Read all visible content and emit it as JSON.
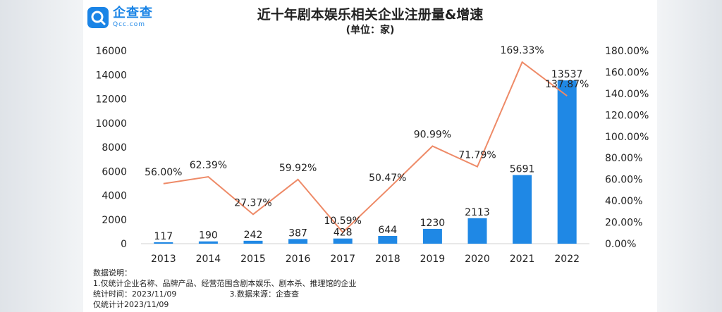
{
  "brand": {
    "name_cn": "企查查",
    "name_en": "Qcc.com",
    "accent": "#1a84e6"
  },
  "chart_data": {
    "type": "bar",
    "title": "近十年剧本娱乐相关企业注册量&增速",
    "subtitle": "(单位：家)",
    "categories": [
      "2013",
      "2014",
      "2015",
      "2016",
      "2017",
      "2018",
      "2019",
      "2020",
      "2021",
      "2022"
    ],
    "series": [
      {
        "type": "bar",
        "axis": "left",
        "color": "#1f88e5",
        "values": [
          117,
          190,
          242,
          387,
          428,
          644,
          1230,
          2113,
          5691,
          13537
        ],
        "labels": [
          "117",
          "190",
          "242",
          "387",
          "428",
          "644",
          "1230",
          "2113",
          "5691",
          "13537"
        ]
      },
      {
        "type": "line",
        "axis": "right",
        "color": "#ee8a67",
        "values": [
          56.0,
          62.39,
          27.37,
          59.92,
          10.59,
          50.47,
          90.99,
          71.79,
          169.33,
          137.87
        ],
        "labels": [
          "56.00%",
          "62.39%",
          "27.37%",
          "59.92%",
          "10.59%",
          "50.47%",
          "90.99%",
          "71.79%",
          "169.33%",
          "137.87%"
        ]
      }
    ],
    "left_axis": {
      "min": 0,
      "max": 16000,
      "ticks": [
        "0",
        "2000",
        "4000",
        "6000",
        "8000",
        "10000",
        "12000",
        "14000",
        "16000"
      ]
    },
    "right_axis": {
      "min": 0,
      "max": 180,
      "ticks": [
        "0.00%",
        "20.00%",
        "40.00%",
        "60.00%",
        "80.00%",
        "100.00%",
        "120.00%",
        "140.00%",
        "160.00%",
        "180.00%"
      ]
    },
    "grid": false
  },
  "notes": {
    "heading": "数据说明：",
    "line1": "1.仅统计企业名称、品牌产品、经营范围含剧本娱乐、剧本杀、推理馆的企业",
    "line2a": "统计时间：2023/11/09",
    "line2b": "3.数据来源：企查查",
    "line3": "仅统计计2023/11/09"
  }
}
